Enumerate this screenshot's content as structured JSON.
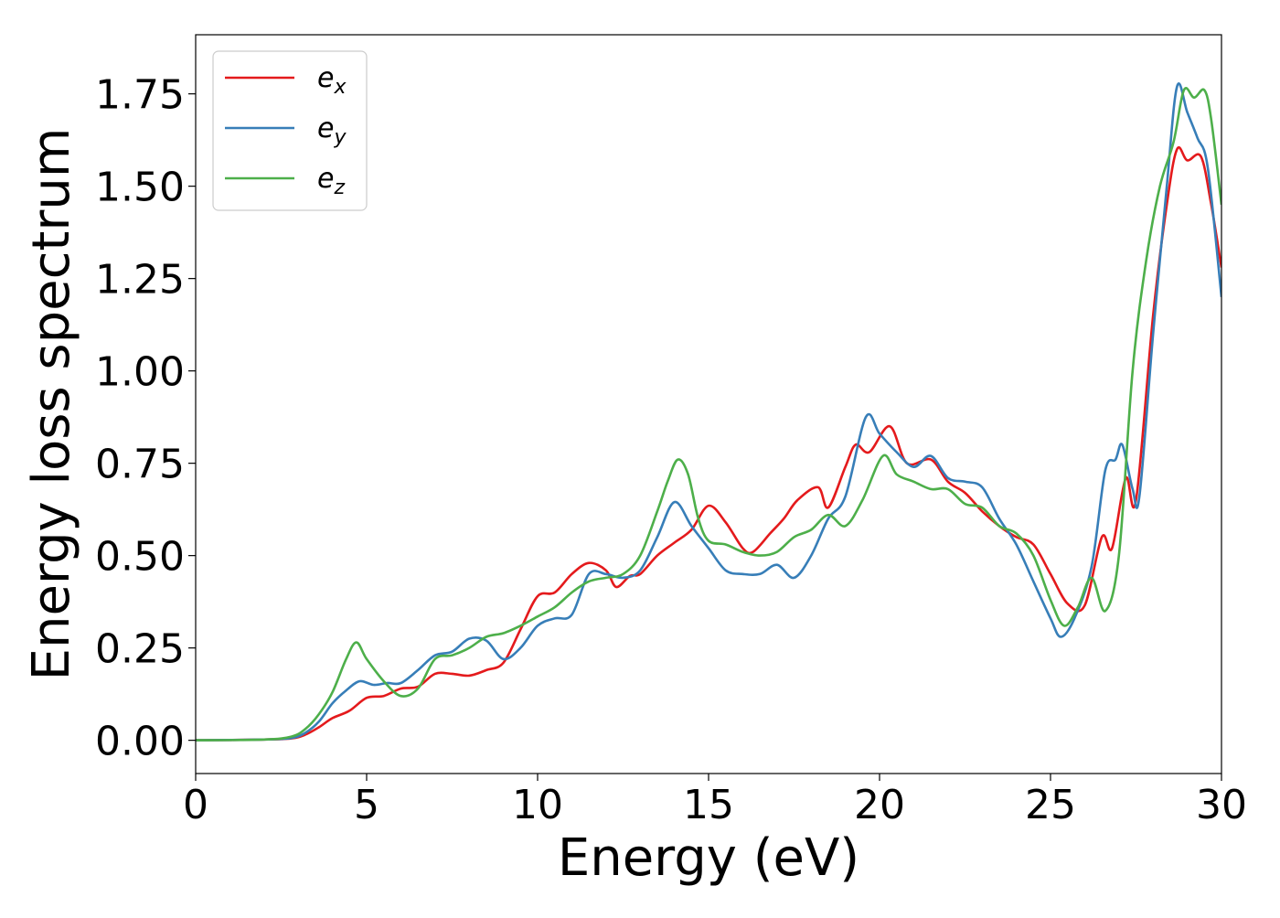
{
  "chart_data": {
    "type": "line",
    "xlabel": "Energy (eV)",
    "ylabel": "Energy loss spectrum",
    "xlim": [
      0,
      30
    ],
    "ylim": [
      -0.09,
      1.91
    ],
    "xticks": [
      0,
      5,
      10,
      15,
      20,
      25,
      30
    ],
    "xtick_labels": [
      "0",
      "5",
      "10",
      "15",
      "20",
      "25",
      "30"
    ],
    "yticks": [
      0.0,
      0.25,
      0.5,
      0.75,
      1.0,
      1.25,
      1.5,
      1.75
    ],
    "ytick_labels": [
      "0.00",
      "0.25",
      "0.50",
      "0.75",
      "1.00",
      "1.25",
      "1.50",
      "1.75"
    ],
    "grid": false,
    "legend_position": "top-left",
    "series": [
      {
        "name": "e_x",
        "legend_base": "e",
        "legend_sub": "x",
        "color": "#e41a1c",
        "points": [
          [
            0,
            0
          ],
          [
            2,
            0.002
          ],
          [
            2.8,
            0.005
          ],
          [
            3.2,
            0.015
          ],
          [
            3.6,
            0.035
          ],
          [
            4.0,
            0.06
          ],
          [
            4.5,
            0.08
          ],
          [
            5.0,
            0.115
          ],
          [
            5.5,
            0.12
          ],
          [
            6.0,
            0.14
          ],
          [
            6.5,
            0.145
          ],
          [
            7.0,
            0.18
          ],
          [
            7.5,
            0.18
          ],
          [
            8.0,
            0.175
          ],
          [
            8.5,
            0.19
          ],
          [
            9.0,
            0.21
          ],
          [
            9.5,
            0.3
          ],
          [
            10.0,
            0.39
          ],
          [
            10.5,
            0.4
          ],
          [
            11.0,
            0.45
          ],
          [
            11.5,
            0.48
          ],
          [
            12.0,
            0.46
          ],
          [
            12.3,
            0.415
          ],
          [
            12.7,
            0.445
          ],
          [
            13.0,
            0.45
          ],
          [
            13.5,
            0.5
          ],
          [
            14.0,
            0.535
          ],
          [
            14.5,
            0.57
          ],
          [
            15.0,
            0.635
          ],
          [
            15.5,
            0.59
          ],
          [
            16.0,
            0.52
          ],
          [
            16.3,
            0.51
          ],
          [
            16.8,
            0.56
          ],
          [
            17.2,
            0.6
          ],
          [
            17.6,
            0.65
          ],
          [
            18.2,
            0.685
          ],
          [
            18.5,
            0.63
          ],
          [
            19.0,
            0.74
          ],
          [
            19.3,
            0.8
          ],
          [
            19.7,
            0.78
          ],
          [
            20.3,
            0.85
          ],
          [
            20.8,
            0.75
          ],
          [
            21.5,
            0.76
          ],
          [
            22.0,
            0.7
          ],
          [
            22.5,
            0.67
          ],
          [
            23.0,
            0.62
          ],
          [
            23.5,
            0.58
          ],
          [
            24.0,
            0.55
          ],
          [
            24.5,
            0.53
          ],
          [
            25.0,
            0.45
          ],
          [
            25.5,
            0.37
          ],
          [
            26.0,
            0.365
          ],
          [
            26.5,
            0.55
          ],
          [
            26.8,
            0.52
          ],
          [
            27.2,
            0.71
          ],
          [
            27.5,
            0.65
          ],
          [
            28.0,
            1.15
          ],
          [
            28.4,
            1.45
          ],
          [
            28.7,
            1.6
          ],
          [
            29.0,
            1.57
          ],
          [
            29.4,
            1.58
          ],
          [
            29.7,
            1.45
          ],
          [
            30.0,
            1.28
          ]
        ]
      },
      {
        "name": "e_y",
        "legend_base": "e",
        "legend_sub": "y",
        "color": "#377eb8",
        "points": [
          [
            0,
            0
          ],
          [
            2,
            0.002
          ],
          [
            2.8,
            0.006
          ],
          [
            3.2,
            0.02
          ],
          [
            3.6,
            0.05
          ],
          [
            4.0,
            0.1
          ],
          [
            4.4,
            0.135
          ],
          [
            4.8,
            0.16
          ],
          [
            5.2,
            0.15
          ],
          [
            5.6,
            0.155
          ],
          [
            6.0,
            0.155
          ],
          [
            6.5,
            0.19
          ],
          [
            7.0,
            0.23
          ],
          [
            7.5,
            0.24
          ],
          [
            8.0,
            0.275
          ],
          [
            8.5,
            0.27
          ],
          [
            9.0,
            0.22
          ],
          [
            9.5,
            0.25
          ],
          [
            10.0,
            0.31
          ],
          [
            10.5,
            0.33
          ],
          [
            11.0,
            0.34
          ],
          [
            11.5,
            0.45
          ],
          [
            12.0,
            0.45
          ],
          [
            12.5,
            0.44
          ],
          [
            13.0,
            0.46
          ],
          [
            13.5,
            0.55
          ],
          [
            14.0,
            0.645
          ],
          [
            14.5,
            0.58
          ],
          [
            15.0,
            0.52
          ],
          [
            15.5,
            0.46
          ],
          [
            16.0,
            0.45
          ],
          [
            16.5,
            0.45
          ],
          [
            17.0,
            0.475
          ],
          [
            17.5,
            0.44
          ],
          [
            18.0,
            0.5
          ],
          [
            18.5,
            0.6
          ],
          [
            19.0,
            0.66
          ],
          [
            19.6,
            0.875
          ],
          [
            20.0,
            0.83
          ],
          [
            20.5,
            0.78
          ],
          [
            21.0,
            0.74
          ],
          [
            21.5,
            0.77
          ],
          [
            22.0,
            0.71
          ],
          [
            22.5,
            0.7
          ],
          [
            23.0,
            0.685
          ],
          [
            23.5,
            0.6
          ],
          [
            24.0,
            0.53
          ],
          [
            24.5,
            0.43
          ],
          [
            25.0,
            0.33
          ],
          [
            25.3,
            0.28
          ],
          [
            25.7,
            0.33
          ],
          [
            26.2,
            0.47
          ],
          [
            26.6,
            0.73
          ],
          [
            26.9,
            0.76
          ],
          [
            27.1,
            0.8
          ],
          [
            27.4,
            0.68
          ],
          [
            27.6,
            0.66
          ],
          [
            28.0,
            1.1
          ],
          [
            28.4,
            1.5
          ],
          [
            28.7,
            1.77
          ],
          [
            29.0,
            1.7
          ],
          [
            29.3,
            1.63
          ],
          [
            29.6,
            1.55
          ],
          [
            30.0,
            1.2
          ]
        ]
      },
      {
        "name": "e_z",
        "legend_base": "e",
        "legend_sub": "z",
        "color": "#4daf4a",
        "points": [
          [
            0,
            0
          ],
          [
            2,
            0.002
          ],
          [
            2.8,
            0.01
          ],
          [
            3.2,
            0.03
          ],
          [
            3.6,
            0.07
          ],
          [
            4.0,
            0.13
          ],
          [
            4.4,
            0.22
          ],
          [
            4.7,
            0.265
          ],
          [
            5.0,
            0.22
          ],
          [
            5.5,
            0.16
          ],
          [
            6.0,
            0.12
          ],
          [
            6.5,
            0.14
          ],
          [
            7.0,
            0.22
          ],
          [
            7.5,
            0.23
          ],
          [
            8.0,
            0.25
          ],
          [
            8.5,
            0.28
          ],
          [
            9.0,
            0.29
          ],
          [
            9.5,
            0.31
          ],
          [
            10.0,
            0.335
          ],
          [
            10.5,
            0.36
          ],
          [
            11.0,
            0.4
          ],
          [
            11.5,
            0.43
          ],
          [
            12.0,
            0.44
          ],
          [
            12.5,
            0.45
          ],
          [
            13.0,
            0.5
          ],
          [
            13.5,
            0.62
          ],
          [
            13.8,
            0.7
          ],
          [
            14.1,
            0.76
          ],
          [
            14.4,
            0.72
          ],
          [
            14.7,
            0.6
          ],
          [
            15.0,
            0.54
          ],
          [
            15.5,
            0.53
          ],
          [
            16.0,
            0.51
          ],
          [
            16.5,
            0.5
          ],
          [
            17.0,
            0.51
          ],
          [
            17.5,
            0.55
          ],
          [
            18.0,
            0.57
          ],
          [
            18.5,
            0.61
          ],
          [
            19.0,
            0.58
          ],
          [
            19.5,
            0.65
          ],
          [
            20.1,
            0.77
          ],
          [
            20.5,
            0.72
          ],
          [
            21.0,
            0.7
          ],
          [
            21.5,
            0.68
          ],
          [
            22.0,
            0.68
          ],
          [
            22.5,
            0.64
          ],
          [
            23.0,
            0.63
          ],
          [
            23.5,
            0.58
          ],
          [
            24.0,
            0.56
          ],
          [
            24.5,
            0.5
          ],
          [
            25.0,
            0.38
          ],
          [
            25.4,
            0.31
          ],
          [
            25.8,
            0.36
          ],
          [
            26.2,
            0.44
          ],
          [
            26.6,
            0.35
          ],
          [
            27.0,
            0.5
          ],
          [
            27.4,
            1.0
          ],
          [
            27.8,
            1.3
          ],
          [
            28.2,
            1.5
          ],
          [
            28.6,
            1.62
          ],
          [
            28.9,
            1.76
          ],
          [
            29.2,
            1.74
          ],
          [
            29.5,
            1.76
          ],
          [
            29.7,
            1.68
          ],
          [
            30.0,
            1.45
          ]
        ]
      }
    ]
  }
}
